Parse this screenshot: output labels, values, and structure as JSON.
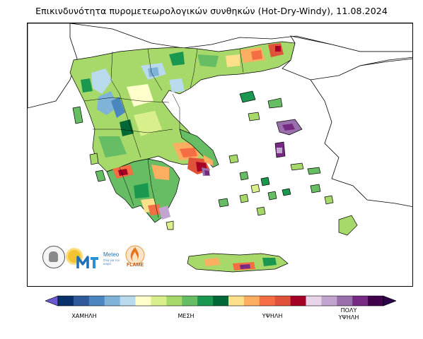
{
  "title": "Επικινδυνότητα πυρομετεωρολογικών συνθηκών (Hot-Dry-Windy), 11.08.2024",
  "logos": {
    "meteo_name": "Meteo",
    "meteo_tagline": "Όλα για τον καιρό",
    "flame_name": "FLAME"
  },
  "legend": {
    "colors": [
      "#08306b",
      "#2e5a9c",
      "#4a86c0",
      "#7fb3d8",
      "#b9d9ec",
      "#ffffcc",
      "#d9ef8b",
      "#a6d96a",
      "#66bd63",
      "#1a9850",
      "#006837",
      "#fee08b",
      "#fdae61",
      "#f46d43",
      "#e0523a",
      "#a50026",
      "#e7d4e8",
      "#c2a5cf",
      "#9970ab",
      "#762a83",
      "#40004b"
    ],
    "low_color": "#6a5acd",
    "high_color": "#2d004b",
    "labels": [
      {
        "text": "ΧΑΜΗΛΗ",
        "index": 2
      },
      {
        "text": "ΜΕΣΗ",
        "index": 8
      },
      {
        "text": "ΥΨΗΛΗ",
        "index": 13
      },
      {
        "text": "ΠΟΛΥ\nΥΨΗΛΗ",
        "index": 18
      }
    ],
    "label_1": "ΧΑΜΗΛΗ",
    "label_2": "ΜΕΣΗ",
    "label_3": "ΥΨΗΛΗ",
    "label_4a": "ΠΟΛΥ",
    "label_4b": "ΥΨΗΛΗ"
  }
}
